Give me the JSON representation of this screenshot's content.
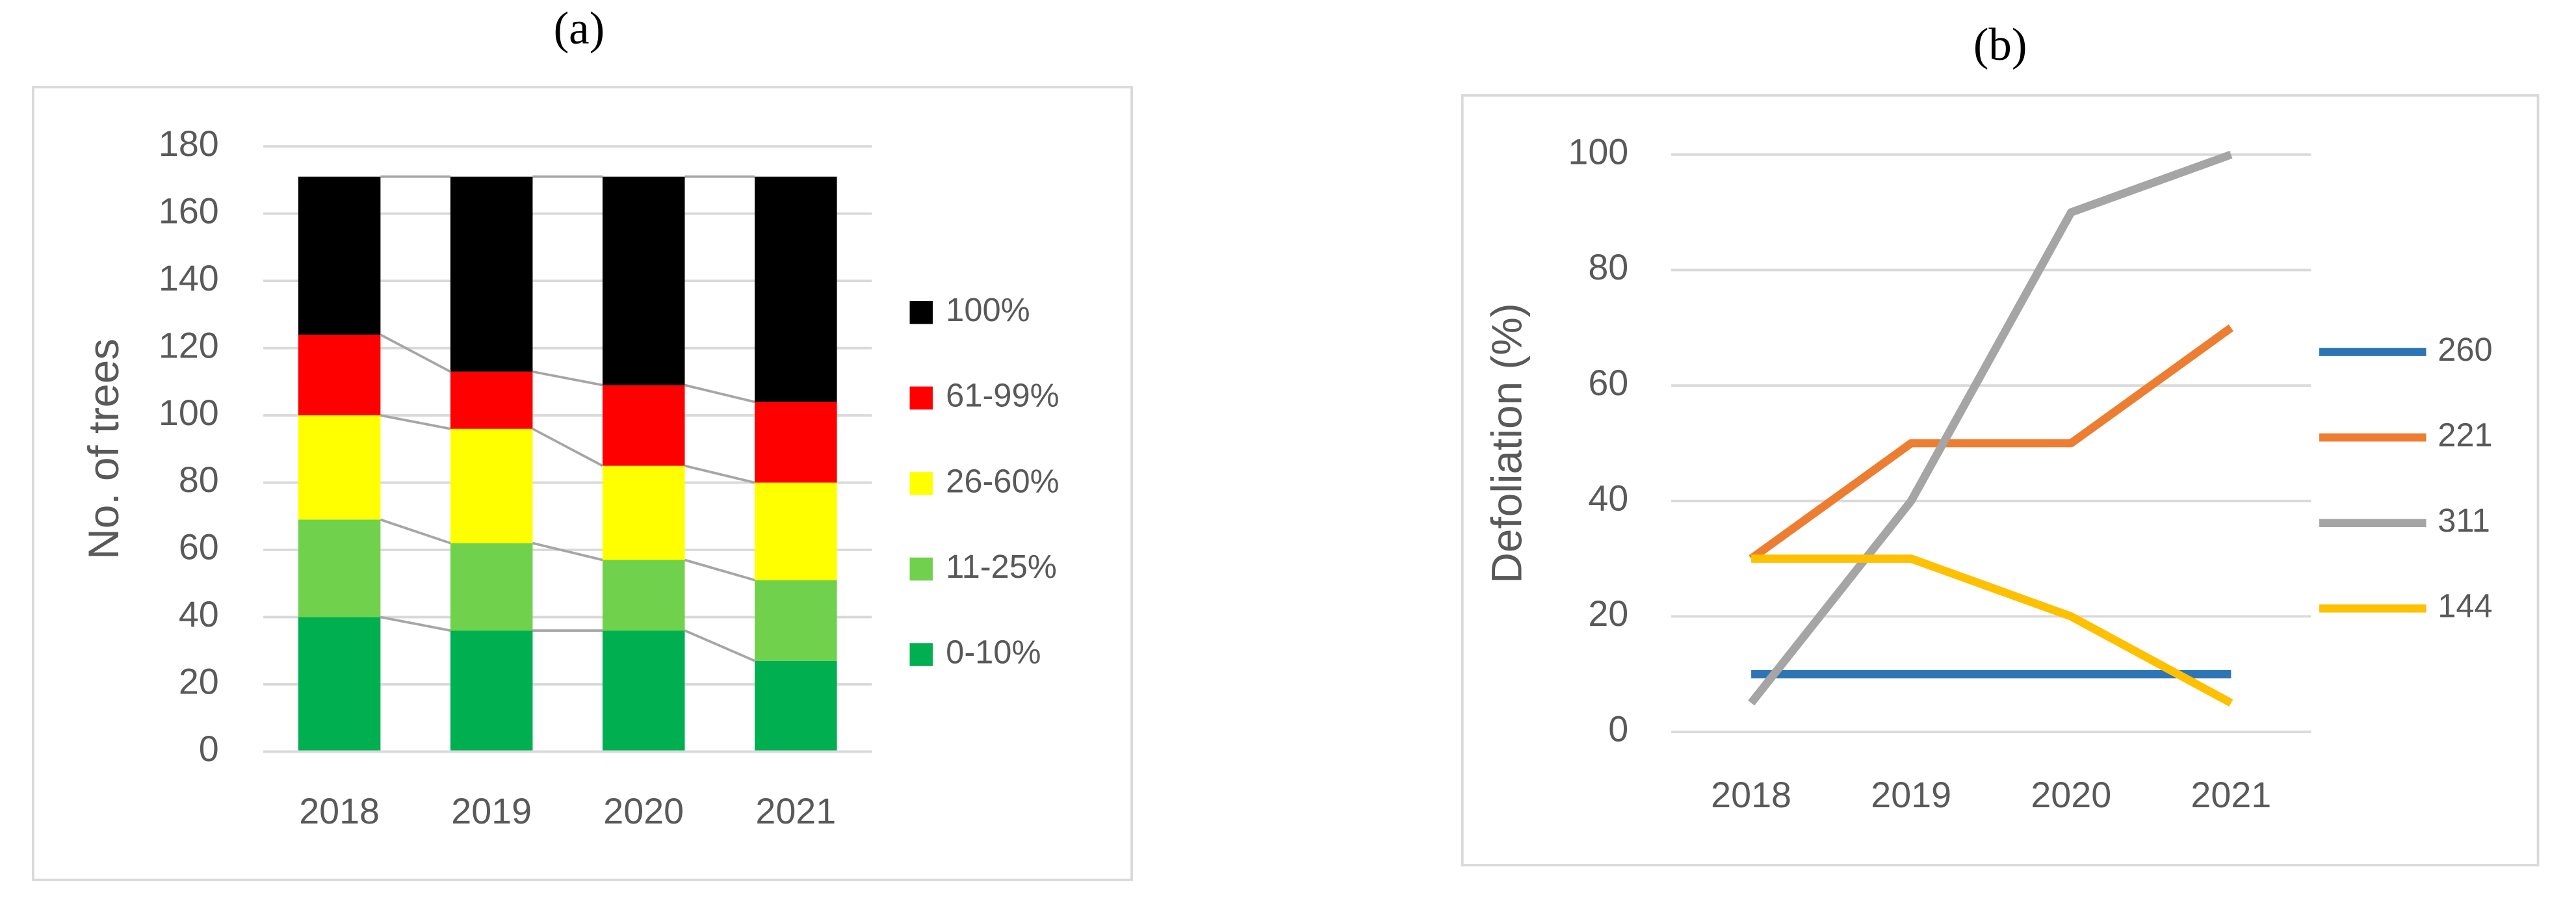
{
  "chart_data": [
    {
      "type": "stacked_bar",
      "title": "(a)",
      "y_label": "No. of trees",
      "categories": [
        "2018",
        "2019",
        "2020",
        "2021"
      ],
      "series": [
        {
          "name": "0-10%",
          "color": "#00b050",
          "values": [
            40,
            36,
            36,
            27
          ]
        },
        {
          "name": "11-25%",
          "color": "#70d24c",
          "values": [
            29,
            26,
            21,
            24
          ]
        },
        {
          "name": "26-60%",
          "color": "#ffff00",
          "values": [
            31,
            34,
            28,
            29
          ]
        },
        {
          "name": "61-99%",
          "color": "#ff0000",
          "values": [
            24,
            17,
            24,
            24
          ]
        },
        {
          "name": "100%",
          "color": "#000000",
          "values": [
            47,
            58,
            62,
            67
          ]
        }
      ],
      "ylim": [
        0,
        180
      ],
      "yticks": [
        0,
        20,
        40,
        60,
        80,
        100,
        120,
        140,
        160,
        180
      ],
      "grid": true,
      "legend": "right"
    },
    {
      "type": "line",
      "title": "(b)",
      "y_label": "Defoliation (%)",
      "categories": [
        "2018",
        "2019",
        "2020",
        "2021"
      ],
      "series": [
        {
          "name": "260",
          "color": "#2e75b6",
          "values": [
            10,
            10,
            10,
            10
          ]
        },
        {
          "name": "221",
          "color": "#ed7d31",
          "values": [
            30,
            50,
            50,
            70
          ]
        },
        {
          "name": "311",
          "color": "#a5a5a5",
          "values": [
            5,
            40,
            90,
            100
          ]
        },
        {
          "name": "144",
          "color": "#ffc000",
          "values": [
            30,
            30,
            20,
            5
          ]
        }
      ],
      "ylim": [
        0,
        100
      ],
      "yticks": [
        0,
        20,
        40,
        60,
        80,
        100
      ],
      "grid": true,
      "legend": "right"
    }
  ]
}
